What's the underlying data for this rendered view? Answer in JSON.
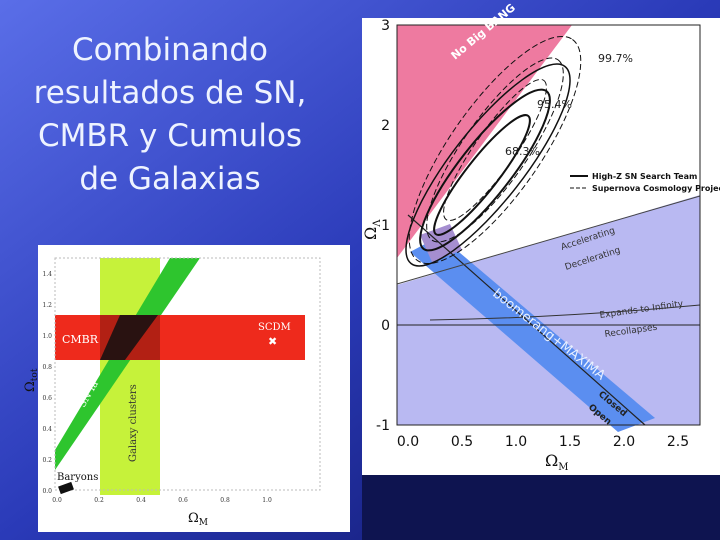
{
  "slide": {
    "title": [
      "Combinando",
      "resultados de SN,",
      "CMBR y Cumulos",
      "de Galaxias"
    ]
  },
  "right_figure": {
    "x_label": "Ω",
    "x_label_sub": "M",
    "y_label": "Ω",
    "y_label_sub": "Λ",
    "xticks": [
      "0.0",
      "0.5",
      "1.0",
      "1.5",
      "2.0",
      "2.5"
    ],
    "yticks": [
      "3",
      "2",
      "1",
      "0",
      "-1"
    ],
    "region_no_big_bang": "No Big BANG",
    "contours": [
      "99.7%",
      "95.4%",
      "68.3%"
    ],
    "legend": [
      "High-Z SN Search Team",
      "Supernova Cosmology Project"
    ],
    "accelerating": "Accelerating",
    "decelerating": "Decelerating",
    "expands": "Expands to Infinity",
    "recollapses": "Recollapses",
    "band": "boomerang+MAXIMA",
    "closed": "Closed",
    "open": "Open"
  },
  "left_figure": {
    "x_label": "Ω",
    "x_label_sub": "M",
    "y_label": "Ω",
    "y_label_sub": "tot",
    "xticks": [
      "0.0",
      "0.2",
      "0.4",
      "0.6",
      "0.8",
      "1.0"
    ],
    "yticks": [
      "1.4",
      "1.2",
      "1.0",
      "0.8",
      "0.6",
      "0.4",
      "0.2",
      "0.0"
    ],
    "cmbr": "CMBR",
    "scdm": "SCDM",
    "sn": "SN Ia",
    "clusters": "Galaxy clusters",
    "baryons": "Baryons"
  }
}
